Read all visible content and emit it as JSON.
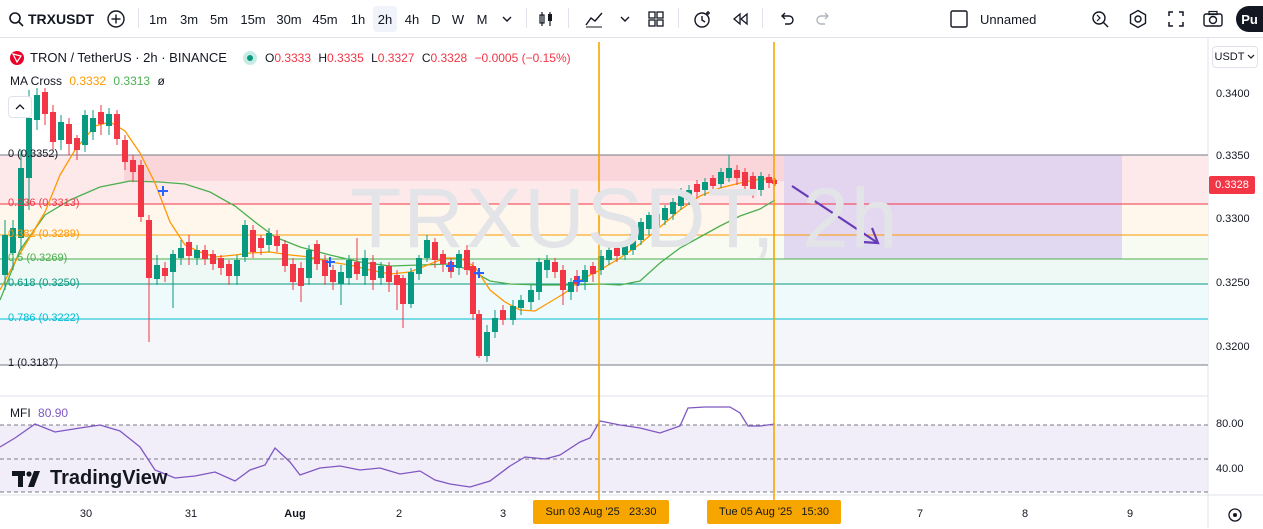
{
  "symbol": "TRXUSDT",
  "intervals": [
    "1m",
    "3m",
    "5m",
    "15m",
    "30m",
    "45m",
    "1h",
    "2h",
    "4h",
    "D",
    "W",
    "M"
  ],
  "active_interval": "2h",
  "layout_name": "Unnamed",
  "publish_label": "Pu",
  "instrument": "TRON / TetherUS · 2h · BINANCE",
  "ohlc": {
    "o_label": "O",
    "o": "0.3333",
    "h_label": "H",
    "h": "0.3335",
    "l_label": "L",
    "l": "0.3327",
    "c_label": "C",
    "c": "0.3328",
    "change": "−0.0005 (−0.15%)"
  },
  "ma_cross": {
    "label": "MA Cross",
    "fast": "0.3332",
    "slow": "0.3313",
    "extra": "ø"
  },
  "mfi": {
    "label": "MFI",
    "value": "80.90"
  },
  "currency": "USDT",
  "price_axis": [
    "0.3400",
    "0.3350",
    "0.3300",
    "0.3250",
    "0.3200"
  ],
  "current_price": "0.3328",
  "fib_levels": [
    {
      "label": "0 (0.3352)",
      "color": "#787b86"
    },
    {
      "label": "0.236 (0.3313)",
      "color": "#f23645"
    },
    {
      "label": "0.382 (0.3289)",
      "color": "#ff9800"
    },
    {
      "label": "0.5 (0.3269)",
      "color": "#4caf50"
    },
    {
      "label": "0.618 (0.3250)",
      "color": "#089981"
    },
    {
      "label": "0.786 (0.3222)",
      "color": "#00bcd4"
    },
    {
      "label": "1 (0.3187)",
      "color": "#787b86"
    }
  ],
  "mfi_axis": [
    "80.00",
    "40.00"
  ],
  "x_axis": [
    "30",
    "31",
    "Aug",
    "2",
    "3",
    "7",
    "8",
    "9"
  ],
  "x_highlights": [
    "Sun 03 Aug '25   23:30",
    "Tue 05 Aug '25   15:30"
  ],
  "watermark": "TRXUSDT, 2h",
  "brand": "TradingView",
  "colors": {
    "up": "#089981",
    "down": "#f23645",
    "ma_fast": "#ff9800",
    "ma_slow": "#4caf50",
    "mfi": "#7e57c2",
    "vline": "#f7a600"
  },
  "icons": [
    "search-icon",
    "add-symbol-icon",
    "chevron-down-icon",
    "candles-icon",
    "indicators-icon",
    "templates-icon",
    "alert-icon",
    "replay-icon",
    "undo-icon",
    "redo-icon",
    "layout-icon",
    "quick-search-icon",
    "settings-icon",
    "fullscreen-icon",
    "camera-icon",
    "lock-icon",
    "reset-icon"
  ]
}
